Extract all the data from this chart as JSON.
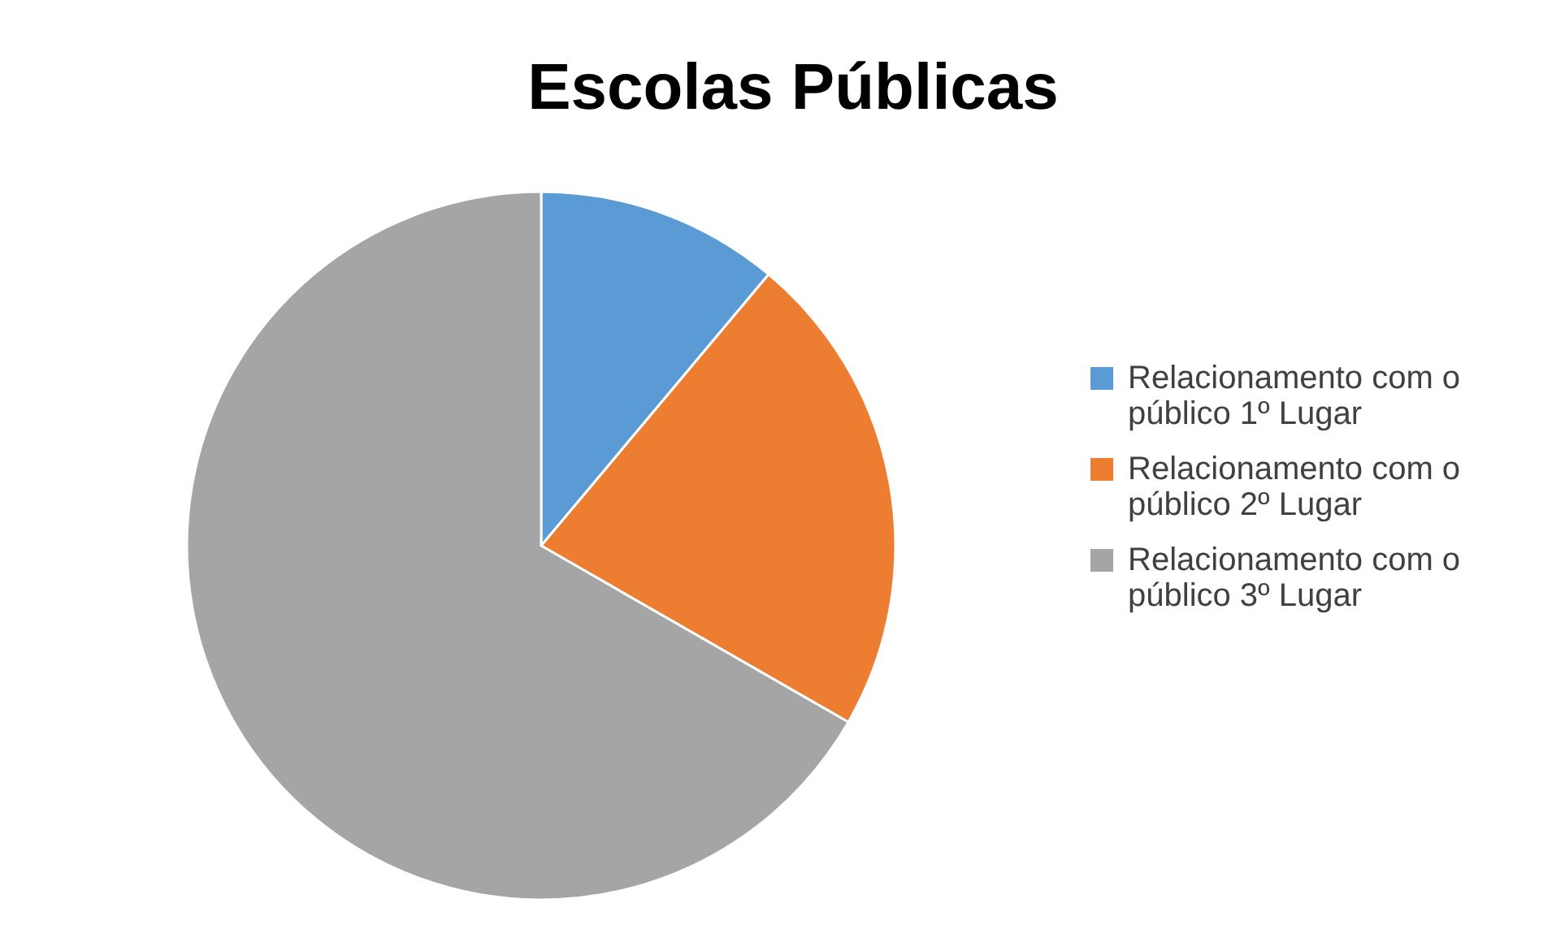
{
  "chart_data": {
    "type": "pie",
    "title": "Escolas Públicas",
    "categories": [
      "Relacionamento com o público 1º Lugar",
      "Relacionamento com o público 2º Lugar",
      "Relacionamento com o público 3º Lugar"
    ],
    "values": [
      11.1,
      22.2,
      66.7
    ],
    "colors": [
      "#5b9bd5",
      "#ed7d31",
      "#a5a5a5"
    ],
    "legend": "right"
  }
}
